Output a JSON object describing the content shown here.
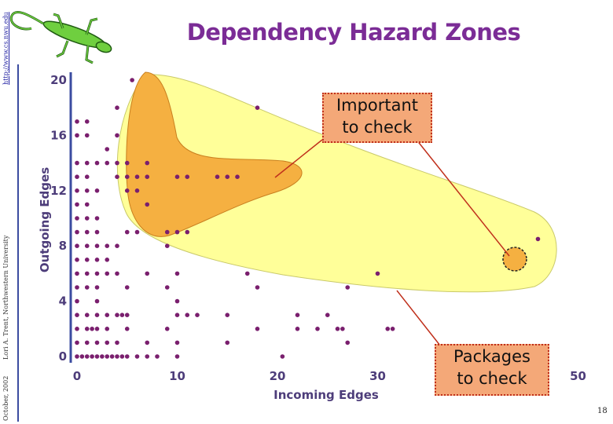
{
  "slide": {
    "title": "Dependency Hazard Zones",
    "side_url": "http://www.cs.nwu.edu",
    "side_author": "Lori A. Trent, Northwestern University",
    "side_date": "October, 2002",
    "page_number": "18",
    "logo_icon": "lizard-icon"
  },
  "callouts": {
    "important": {
      "line1": "Important",
      "line2": "to check"
    },
    "packages": {
      "line1": "Packages",
      "line2": "to check"
    }
  },
  "colors": {
    "title": "#7b2c96",
    "points": "#7a1f6e",
    "outer_zone": "#ffff99",
    "inner_zone": "#f5b041",
    "callout_fill": "#f4a878",
    "callout_border": "#c0301c"
  },
  "chart_data": {
    "type": "scatter",
    "xlabel": "Incoming Edges",
    "ylabel": "Outgoing Edges",
    "xlim": [
      0,
      50
    ],
    "ylim": [
      0,
      20
    ],
    "xticks": [
      "0",
      "10",
      "20",
      "30",
      "50"
    ],
    "yticks": [
      "0",
      "4",
      "8",
      "12",
      "16",
      "20"
    ],
    "grid": false,
    "legend": "none",
    "zones": [
      {
        "name": "Important to check"
      },
      {
        "name": "Packages to check"
      }
    ],
    "points": [
      [
        0,
        0
      ],
      [
        0.5,
        0
      ],
      [
        1,
        0
      ],
      [
        1.5,
        0
      ],
      [
        2,
        0
      ],
      [
        2.5,
        0
      ],
      [
        3,
        0
      ],
      [
        3.5,
        0
      ],
      [
        4,
        0
      ],
      [
        4.5,
        0
      ],
      [
        5,
        0
      ],
      [
        6,
        0
      ],
      [
        7,
        0
      ],
      [
        8,
        0
      ],
      [
        10,
        0
      ],
      [
        20.5,
        0
      ],
      [
        0,
        1
      ],
      [
        1,
        1
      ],
      [
        2,
        1
      ],
      [
        3,
        1
      ],
      [
        4,
        1
      ],
      [
        7,
        1
      ],
      [
        10,
        1
      ],
      [
        15,
        1
      ],
      [
        27,
        1
      ],
      [
        0,
        2
      ],
      [
        1,
        2
      ],
      [
        1.5,
        2
      ],
      [
        2,
        2
      ],
      [
        3,
        2
      ],
      [
        5,
        2
      ],
      [
        9,
        2
      ],
      [
        18,
        2
      ],
      [
        22,
        2
      ],
      [
        24,
        2
      ],
      [
        26,
        2
      ],
      [
        26.5,
        2
      ],
      [
        31,
        2
      ],
      [
        31.5,
        2
      ],
      [
        0,
        3
      ],
      [
        1,
        3
      ],
      [
        2,
        3
      ],
      [
        3,
        3
      ],
      [
        4,
        3
      ],
      [
        4.5,
        3
      ],
      [
        5,
        3
      ],
      [
        10,
        3
      ],
      [
        11,
        3
      ],
      [
        12,
        3
      ],
      [
        15,
        3
      ],
      [
        22,
        3
      ],
      [
        25,
        3
      ],
      [
        0,
        4
      ],
      [
        2,
        4
      ],
      [
        10,
        4
      ],
      [
        0,
        5
      ],
      [
        1,
        5
      ],
      [
        2,
        5
      ],
      [
        5,
        5
      ],
      [
        9,
        5
      ],
      [
        18,
        5
      ],
      [
        27,
        5
      ],
      [
        0,
        6
      ],
      [
        1,
        6
      ],
      [
        2,
        6
      ],
      [
        3,
        6
      ],
      [
        4,
        6
      ],
      [
        7,
        6
      ],
      [
        10,
        6
      ],
      [
        17,
        6
      ],
      [
        30,
        6
      ],
      [
        0,
        7
      ],
      [
        1,
        7
      ],
      [
        2,
        7
      ],
      [
        3,
        7
      ],
      [
        0,
        8
      ],
      [
        1,
        8
      ],
      [
        2,
        8
      ],
      [
        3,
        8
      ],
      [
        4,
        8
      ],
      [
        9,
        8
      ],
      [
        0,
        9
      ],
      [
        1,
        9
      ],
      [
        2,
        9
      ],
      [
        5,
        9
      ],
      [
        6,
        9
      ],
      [
        9,
        9
      ],
      [
        10,
        9
      ],
      [
        11,
        9
      ],
      [
        0,
        10
      ],
      [
        1,
        10
      ],
      [
        2,
        10
      ],
      [
        0,
        11
      ],
      [
        1,
        11
      ],
      [
        7,
        11
      ],
      [
        0,
        12
      ],
      [
        1,
        12
      ],
      [
        2,
        12
      ],
      [
        5,
        12
      ],
      [
        6,
        12
      ],
      [
        0,
        13
      ],
      [
        1,
        13
      ],
      [
        4,
        13
      ],
      [
        5,
        13
      ],
      [
        6,
        13
      ],
      [
        7,
        13
      ],
      [
        10,
        13
      ],
      [
        11,
        13
      ],
      [
        14,
        13
      ],
      [
        15,
        13
      ],
      [
        16,
        13
      ],
      [
        0,
        14
      ],
      [
        1,
        14
      ],
      [
        2,
        14
      ],
      [
        3,
        14
      ],
      [
        4,
        14
      ],
      [
        5,
        14
      ],
      [
        7,
        14
      ],
      [
        3,
        15
      ],
      [
        0,
        16
      ],
      [
        1,
        16
      ],
      [
        4,
        16
      ],
      [
        0,
        17
      ],
      [
        1,
        17
      ],
      [
        4,
        18
      ],
      [
        18,
        18
      ],
      [
        5.5,
        20
      ],
      [
        46,
        8.5
      ]
    ]
  }
}
